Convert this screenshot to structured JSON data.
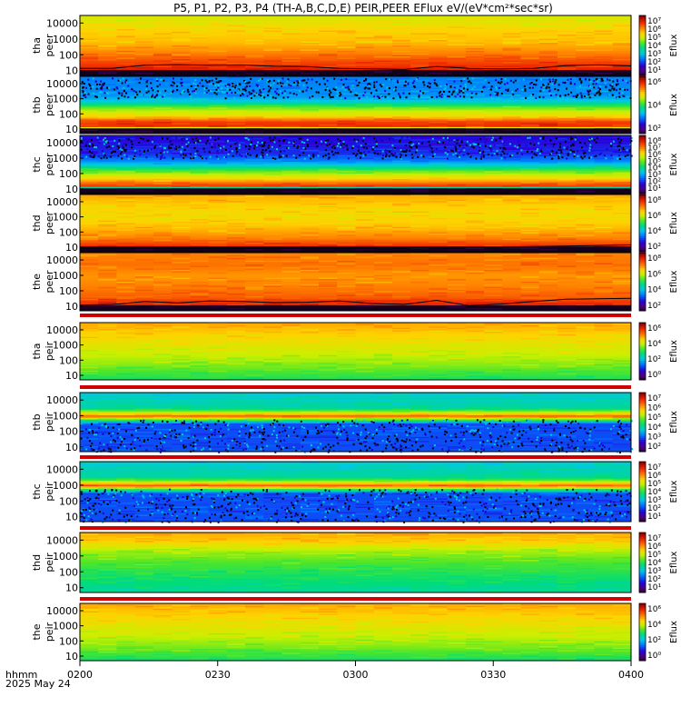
{
  "title": "P5, P1, P2, P3, P4 (TH-A,B,C,D,E) PEIR,PEER EFlux eV/(eV*cm²*sec*sr)",
  "time_axis": {
    "label_line1": "hhmm",
    "label_line2": "2025 May 24",
    "ticks": [
      "0200",
      "0230",
      "0300",
      "0330",
      "0400"
    ]
  },
  "chart_data": {
    "type": "heatmap",
    "x_range": [
      "02:00",
      "04:00"
    ],
    "y_scale": "log",
    "y_range": [
      5,
      30000
    ],
    "y_ticks": [
      "10000",
      "1000",
      "100",
      "10"
    ],
    "colorbar_label": "Eflux",
    "panels": [
      {
        "probe": "tha",
        "species": "peer",
        "cb_ticks": [
          "10⁷",
          "10⁶",
          "10⁵",
          "10⁴",
          "10³",
          "10²",
          "10¹"
        ],
        "profile": [
          [
            10,
            0.0
          ],
          [
            11,
            0.92
          ],
          [
            40,
            0.86
          ],
          [
            130,
            0.8
          ],
          [
            600,
            0.74
          ],
          [
            3000,
            0.72
          ],
          [
            25000,
            0.66
          ]
        ],
        "sc_potential": [
          14,
          14,
          22,
          24,
          22,
          23,
          19,
          18,
          14,
          13,
          12,
          18,
          14,
          13,
          14,
          21,
          23,
          20
        ],
        "show_potential": true
      },
      {
        "probe": "thb",
        "species": "peer",
        "cb_ticks": [
          "10⁶",
          "10⁴",
          "10²"
        ],
        "profile": [
          [
            10,
            0.0
          ],
          [
            13,
            0.9
          ],
          [
            30,
            0.88
          ],
          [
            70,
            0.7
          ],
          [
            150,
            0.64
          ],
          [
            300,
            0.55
          ],
          [
            600,
            0.4
          ],
          [
            1500,
            0.32
          ],
          [
            25000,
            0.3
          ]
        ],
        "noise": {
          "from": 1200,
          "to": 25000
        },
        "sc_potential": [],
        "show_potential": false
      },
      {
        "probe": "thc",
        "species": "peer",
        "cb_ticks": [
          "10⁸",
          "10⁷",
          "10⁶",
          "10⁵",
          "10⁴",
          "10³",
          "10²",
          "10¹"
        ],
        "profile": [
          [
            10,
            0.0
          ],
          [
            15,
            0.9
          ],
          [
            30,
            0.78
          ],
          [
            60,
            0.68
          ],
          [
            150,
            0.56
          ],
          [
            300,
            0.42
          ],
          [
            700,
            0.3
          ],
          [
            2000,
            0.22
          ],
          [
            25000,
            0.18
          ]
        ],
        "noise": {
          "from": 1000,
          "to": 25000
        },
        "sc_potential": [],
        "show_potential": false
      },
      {
        "probe": "thd",
        "species": "peer",
        "cb_ticks": [
          "10⁸",
          "10⁶",
          "10⁴",
          "10²"
        ],
        "profile": [
          [
            10,
            0.0
          ],
          [
            11,
            0.9
          ],
          [
            40,
            0.8
          ],
          [
            200,
            0.74
          ],
          [
            1000,
            0.7
          ],
          [
            5000,
            0.72
          ],
          [
            25000,
            0.76
          ]
        ],
        "sc_potential": [
          9,
          9,
          9,
          9,
          9,
          9,
          9,
          9,
          9,
          9,
          9,
          10,
          10,
          10,
          11,
          12,
          13,
          14
        ],
        "show_potential": true
      },
      {
        "probe": "the",
        "species": "peer",
        "cb_ticks": [
          "10⁸",
          "10⁶",
          "10⁴",
          "10²"
        ],
        "profile": [
          [
            10,
            0.0
          ],
          [
            11,
            0.92
          ],
          [
            40,
            0.84
          ],
          [
            200,
            0.8
          ],
          [
            1000,
            0.78
          ],
          [
            5000,
            0.82
          ],
          [
            25000,
            0.8
          ]
        ],
        "sc_potential": [
          12,
          13,
          20,
          16,
          22,
          20,
          17,
          18,
          22,
          15,
          13,
          24,
          11,
          14,
          20,
          28,
          30,
          32
        ],
        "show_potential": true
      },
      {
        "probe": "tha",
        "species": "peir",
        "cb_ticks": [
          "10⁶",
          "10⁴",
          "10²",
          "10⁰"
        ],
        "profile": [
          [
            5,
            0.5
          ],
          [
            30,
            0.58
          ],
          [
            200,
            0.64
          ],
          [
            1000,
            0.68
          ],
          [
            5000,
            0.72
          ],
          [
            25000,
            0.76
          ]
        ],
        "sc_potential": [],
        "show_potential": false
      },
      {
        "probe": "thb",
        "species": "peir",
        "cb_ticks": [
          "10⁷",
          "10⁶",
          "10⁵",
          "10⁴",
          "10³",
          "10²"
        ],
        "profile": [
          [
            5,
            0.25
          ],
          [
            300,
            0.25
          ],
          [
            600,
            0.6
          ],
          [
            900,
            0.86
          ],
          [
            1300,
            0.7
          ],
          [
            3000,
            0.45
          ],
          [
            25000,
            0.4
          ]
        ],
        "noise": {
          "from": 5,
          "to": 600
        },
        "sc_potential": [],
        "show_potential": false
      },
      {
        "probe": "thc",
        "species": "peir",
        "cb_ticks": [
          "10⁷",
          "10⁶",
          "10⁵",
          "10⁴",
          "10³",
          "10²",
          "10¹"
        ],
        "profile": [
          [
            5,
            0.25
          ],
          [
            300,
            0.25
          ],
          [
            600,
            0.6
          ],
          [
            900,
            0.86
          ],
          [
            1300,
            0.7
          ],
          [
            3000,
            0.45
          ],
          [
            25000,
            0.4
          ]
        ],
        "noise": {
          "from": 5,
          "to": 600
        },
        "sc_potential": [],
        "show_potential": false
      },
      {
        "probe": "thd",
        "species": "peir",
        "cb_ticks": [
          "10⁷",
          "10⁶",
          "10⁵",
          "10⁴",
          "10³",
          "10²",
          "10¹"
        ],
        "profile": [
          [
            5,
            0.45
          ],
          [
            50,
            0.5
          ],
          [
            300,
            0.55
          ],
          [
            2000,
            0.62
          ],
          [
            8000,
            0.72
          ],
          [
            25000,
            0.76
          ]
        ],
        "sc_potential": [],
        "show_potential": false
      },
      {
        "probe": "the",
        "species": "peir",
        "cb_ticks": [
          "10⁶",
          "10⁴",
          "10²",
          "10⁰"
        ],
        "profile": [
          [
            5,
            0.5
          ],
          [
            30,
            0.58
          ],
          [
            200,
            0.64
          ],
          [
            1000,
            0.68
          ],
          [
            5000,
            0.72
          ],
          [
            25000,
            0.76
          ]
        ],
        "sc_potential": [],
        "show_potential": false
      }
    ]
  }
}
